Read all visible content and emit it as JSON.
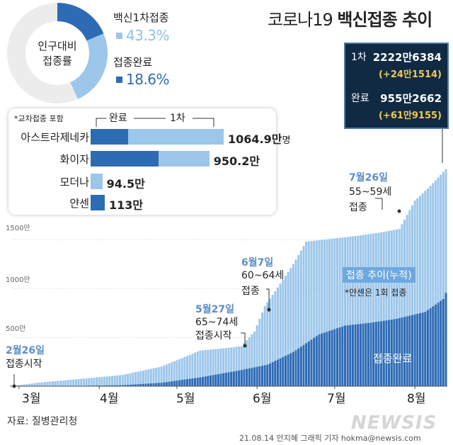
{
  "title_regular": "코로나19 ",
  "title_bold": "백신접종 추이",
  "donut": {
    "center_line1": "인구대비",
    "center_line2": "접종률",
    "first_dose_label": "백신1차접종",
    "first_dose_value": "43.3%",
    "first_dose_pct": 43.3,
    "complete_label": "접종완료",
    "complete_value": "18.6%",
    "complete_pct": 18.6
  },
  "vaccine_box": {
    "note": "*교차접종 포함",
    "legend_complete": "완료",
    "legend_first": "1차",
    "rows": [
      {
        "name": "아스트라제네카",
        "value": "1064.9만",
        "unit": "명",
        "total": 1064.9,
        "complete": 300
      },
      {
        "name": "화이자",
        "value": "950.2만",
        "unit": "",
        "total": 950.2,
        "complete": 544
      },
      {
        "name": "모더나",
        "value": "94.5만",
        "unit": "",
        "total": 94.5,
        "complete": 0
      },
      {
        "name": "얀센",
        "value": "113만",
        "unit": "",
        "total": 113,
        "complete": 113
      }
    ]
  },
  "panel": {
    "first_label": "1차",
    "first_value": "2222만6384",
    "first_delta": "(+24만1514)",
    "complete_label": "완료",
    "complete_value": "955만2662",
    "complete_delta": "(+61만9155)"
  },
  "annotations": {
    "a1_date": "2월26일",
    "a1_text": "접종시작",
    "a2_date": "5월27일",
    "a2_line1": "65~74세",
    "a2_line2": "접종시작",
    "a3_date": "6월7일",
    "a3_line1": "60~64세",
    "a3_line2": "접종",
    "a4_date": "7월26일",
    "a4_line1": "55~59세",
    "a4_line2": "접종",
    "series_label": "접종 추이(누적)",
    "janssen_note": "*얀센은 1회 접종",
    "complete_series_label": "접종완료"
  },
  "source": "자료: 질병관리청",
  "credit": "21.08.14 안지혜 그래픽 기자 hokma@newsis.com",
  "logo": "NEWSIS",
  "colors": {
    "first": "#9cc6ea",
    "complete": "#2e6bb5",
    "panel_bg": "#102a44",
    "delta": "#f3c94f",
    "accent_text": "#5b8dc9"
  },
  "chart_data": {
    "type": "bar",
    "x_start": "2021-02-26",
    "x_end": "2021-08-13",
    "ylim": [
      0,
      2300
    ],
    "y_unit": "만",
    "yticks": [
      {
        "value": 500,
        "label": "500만"
      },
      {
        "value": 1000,
        "label": "1000만"
      },
      {
        "value": 1500,
        "label": "1500만"
      }
    ],
    "xticks": [
      {
        "date": "2021-03-01",
        "label": "3월"
      },
      {
        "date": "2021-04-01",
        "label": "4월"
      },
      {
        "date": "2021-05-01",
        "label": "5월"
      },
      {
        "date": "2021-06-01",
        "label": "6월"
      },
      {
        "date": "2021-07-01",
        "label": "7월"
      },
      {
        "date": "2021-08-01",
        "label": "8월"
      }
    ],
    "series": [
      {
        "name": "1차",
        "points": [
          [
            "2021-02-26",
            2
          ],
          [
            "2021-03-10",
            40
          ],
          [
            "2021-03-25",
            75
          ],
          [
            "2021-04-10",
            115
          ],
          [
            "2021-04-25",
            200
          ],
          [
            "2021-05-10",
            365
          ],
          [
            "2021-05-20",
            390
          ],
          [
            "2021-05-26",
            410
          ],
          [
            "2021-05-31",
            560
          ],
          [
            "2021-06-04",
            820
          ],
          [
            "2021-06-10",
            1050
          ],
          [
            "2021-06-15",
            1250
          ],
          [
            "2021-06-20",
            1480
          ],
          [
            "2021-06-30",
            1510
          ],
          [
            "2021-07-10",
            1540
          ],
          [
            "2021-07-20",
            1580
          ],
          [
            "2021-07-26",
            1610
          ],
          [
            "2021-08-01",
            1900
          ],
          [
            "2021-08-07",
            2050
          ],
          [
            "2021-08-13",
            2222.6
          ]
        ]
      },
      {
        "name": "접종완료",
        "points": [
          [
            "2021-02-26",
            0
          ],
          [
            "2021-03-20",
            2
          ],
          [
            "2021-04-10",
            10
          ],
          [
            "2021-04-25",
            35
          ],
          [
            "2021-05-10",
            90
          ],
          [
            "2021-05-25",
            160
          ],
          [
            "2021-06-05",
            220
          ],
          [
            "2021-06-15",
            350
          ],
          [
            "2021-06-25",
            530
          ],
          [
            "2021-07-05",
            620
          ],
          [
            "2021-07-15",
            650
          ],
          [
            "2021-07-25",
            690
          ],
          [
            "2021-08-05",
            760
          ],
          [
            "2021-08-12",
            893
          ],
          [
            "2021-08-13",
            955.3
          ]
        ]
      }
    ]
  }
}
